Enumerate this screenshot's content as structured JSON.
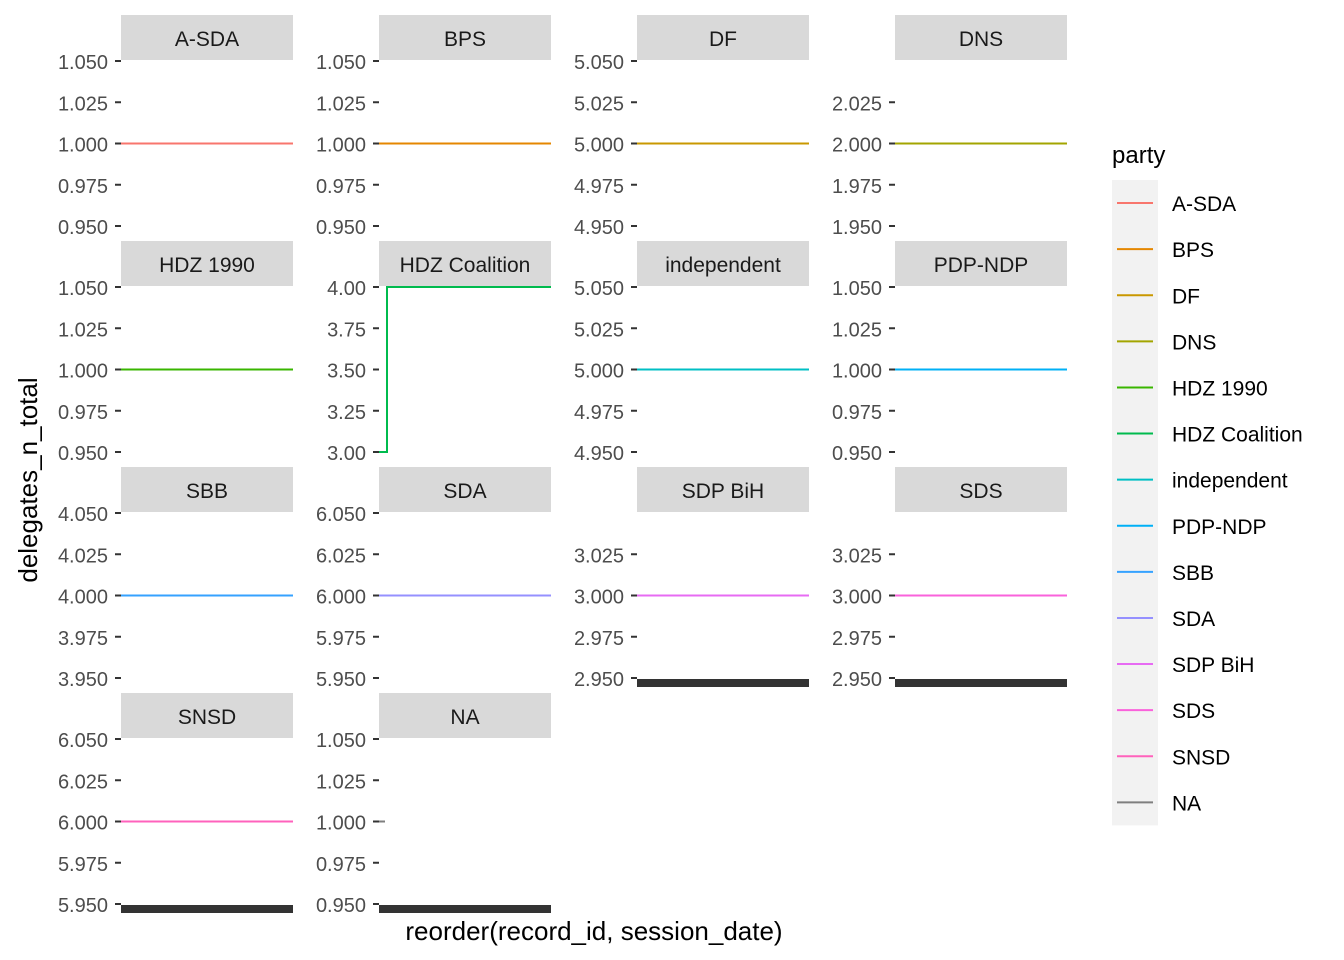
{
  "chart_data": {
    "type": "line",
    "xlabel": "reorder(record_id, session_date)",
    "ylabel": "delegates_n_total",
    "legend": {
      "title": "party",
      "placement": "right",
      "entries": [
        {
          "label": "A-SDA",
          "color": "#F8766D"
        },
        {
          "label": "BPS",
          "color": "#E58700"
        },
        {
          "label": "DF",
          "color": "#C99800"
        },
        {
          "label": "DNS",
          "color": "#A3A500"
        },
        {
          "label": "HDZ 1990",
          "color": "#39B600"
        },
        {
          "label": "HDZ Coalition",
          "color": "#00BB4E"
        },
        {
          "label": "independent",
          "color": "#00BFC4"
        },
        {
          "label": "PDP-NDP",
          "color": "#00B0F6"
        },
        {
          "label": "SBB",
          "color": "#35A2FF"
        },
        {
          "label": "SDA",
          "color": "#9590FF"
        },
        {
          "label": "SDP BiH",
          "color": "#E76BF3"
        },
        {
          "label": "SDS",
          "color": "#FA62DB"
        },
        {
          "label": "SNSD",
          "color": "#FF62BC"
        },
        {
          "label": "NA",
          "color": "#7F7F7F"
        }
      ]
    },
    "grid": false,
    "x_axis_ticks": "none",
    "facets": [
      {
        "strip": "A-SDA",
        "color": "#F8766D",
        "ylim": [
          0.95,
          1.05
        ],
        "yticks": [
          "0.950",
          "0.975",
          "1.000",
          "1.025",
          "1.050"
        ],
        "y": [
          1,
          1
        ]
      },
      {
        "strip": "BPS",
        "color": "#E58700",
        "ylim": [
          0.95,
          1.05
        ],
        "yticks": [
          "0.950",
          "0.975",
          "1.000",
          "1.025",
          "1.050"
        ],
        "y": [
          1,
          1
        ]
      },
      {
        "strip": "DF",
        "color": "#C99800",
        "ylim": [
          4.95,
          5.05
        ],
        "yticks": [
          "4.950",
          "4.975",
          "5.000",
          "5.025",
          "5.050"
        ],
        "y": [
          5,
          5
        ]
      },
      {
        "strip": "DNS",
        "color": "#A3A500",
        "ylim": [
          1.95,
          2.05
        ],
        "yticks": [
          "1.950",
          "1.975",
          "2.000",
          "2.025"
        ],
        "y": [
          2,
          2
        ]
      },
      {
        "strip": "HDZ 1990",
        "color": "#39B600",
        "ylim": [
          0.95,
          1.05
        ],
        "yticks": [
          "0.950",
          "0.975",
          "1.000",
          "1.025",
          "1.050"
        ],
        "y": [
          1,
          1
        ]
      },
      {
        "strip": "HDZ Coalition",
        "color": "#00BB4E",
        "ylim": [
          3.0,
          4.0
        ],
        "yticks": [
          "3.00",
          "3.25",
          "3.50",
          "3.75",
          "4.00"
        ],
        "y": [
          3,
          4,
          4
        ],
        "step": true
      },
      {
        "strip": "independent",
        "color": "#00BFC4",
        "ylim": [
          4.95,
          5.05
        ],
        "yticks": [
          "4.950",
          "4.975",
          "5.000",
          "5.025",
          "5.050"
        ],
        "y": [
          5,
          5
        ]
      },
      {
        "strip": "PDP-NDP",
        "color": "#00B0F6",
        "ylim": [
          0.95,
          1.05
        ],
        "yticks": [
          "0.950",
          "0.975",
          "1.000",
          "1.025",
          "1.050"
        ],
        "y": [
          1,
          1
        ]
      },
      {
        "strip": "SBB",
        "color": "#35A2FF",
        "ylim": [
          3.95,
          4.05
        ],
        "yticks": [
          "3.950",
          "3.975",
          "4.000",
          "4.025",
          "4.050"
        ],
        "y": [
          4,
          4
        ]
      },
      {
        "strip": "SDA",
        "color": "#9590FF",
        "ylim": [
          5.95,
          6.05
        ],
        "yticks": [
          "5.950",
          "5.975",
          "6.000",
          "6.025",
          "6.050"
        ],
        "y": [
          6,
          6
        ]
      },
      {
        "strip": "SDP BiH",
        "color": "#E76BF3",
        "ylim": [
          2.95,
          3.05
        ],
        "yticks": [
          "2.950",
          "2.975",
          "3.000",
          "3.025"
        ],
        "y": [
          3,
          3
        ]
      },
      {
        "strip": "SDS",
        "color": "#FA62DB",
        "ylim": [
          2.95,
          3.05
        ],
        "yticks": [
          "2.950",
          "2.975",
          "3.000",
          "3.025"
        ],
        "y": [
          3,
          3
        ]
      },
      {
        "strip": "SNSD",
        "color": "#FF62BC",
        "ylim": [
          5.95,
          6.05
        ],
        "yticks": [
          "5.950",
          "5.975",
          "6.000",
          "6.025",
          "6.050"
        ],
        "y": [
          6,
          6
        ]
      },
      {
        "strip": "NA",
        "color": "#7F7F7F",
        "ylim": [
          0.95,
          1.05
        ],
        "yticks": [
          "0.950",
          "0.975",
          "1.000",
          "1.025",
          "1.050"
        ],
        "y": [
          1,
          1
        ],
        "short": true
      }
    ]
  }
}
